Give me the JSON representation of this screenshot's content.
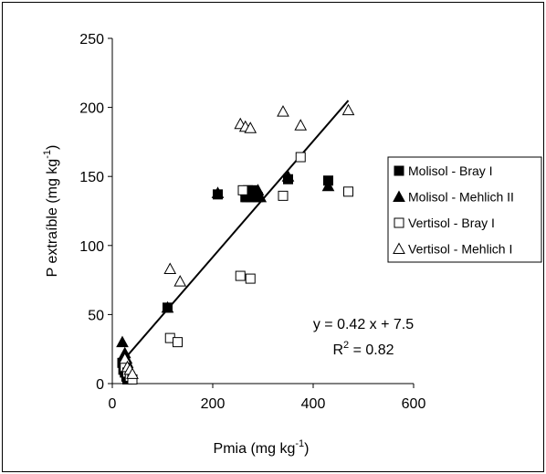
{
  "chart_data": {
    "type": "scatter",
    "xlabel": [
      "Pmia (mg kg",
      "-1",
      ")"
    ],
    "ylabel": [
      "P extraíble (mg kg",
      "-1",
      ")"
    ],
    "annotation": {
      "equation": "y = 0.42 x + 7.5",
      "r2": [
        "R",
        "2",
        " = 0.82"
      ]
    },
    "xlim": [
      0,
      600
    ],
    "xticks": [
      0,
      200,
      400,
      600
    ],
    "ylim": [
      0,
      250
    ],
    "yticks": [
      0,
      50,
      100,
      150,
      200,
      250
    ],
    "trendline": {
      "x": [
        20,
        470
      ],
      "y": [
        16,
        205
      ],
      "color": "#000000"
    },
    "series": [
      {
        "name": "Molisol - Bray I",
        "marker": "square",
        "filled": true,
        "color": "#000000",
        "x": [
          20,
          22,
          25,
          28,
          30,
          110,
          210,
          265,
          270,
          275,
          280,
          290,
          350,
          430
        ],
        "values": [
          15,
          10,
          8,
          5,
          3,
          55,
          137,
          135,
          140,
          135,
          140,
          135,
          148,
          147
        ]
      },
      {
        "name": "Molisol - Mehlich II",
        "marker": "triangle",
        "filled": true,
        "color": "#000000",
        "x": [
          20,
          25,
          28,
          30,
          32,
          110,
          210,
          270,
          280,
          290,
          295,
          350,
          430
        ],
        "values": [
          30,
          22,
          18,
          15,
          10,
          55,
          138,
          135,
          138,
          140,
          135,
          150,
          143
        ]
      },
      {
        "name": "Vertisol - Bray I",
        "marker": "square",
        "filled": false,
        "color": "#000000",
        "x": [
          25,
          30,
          35,
          40,
          115,
          130,
          255,
          275,
          260,
          340,
          375,
          470
        ],
        "values": [
          12,
          8,
          5,
          3,
          33,
          30,
          78,
          76,
          140,
          136,
          164,
          139
        ]
      },
      {
        "name": "Vertisol - Mehlich I",
        "marker": "triangle",
        "filled": false,
        "color": "#000000",
        "x": [
          25,
          30,
          35,
          40,
          115,
          135,
          255,
          265,
          275,
          340,
          375,
          470
        ],
        "values": [
          18,
          12,
          10,
          7,
          83,
          74,
          188,
          186,
          185,
          197,
          187,
          198
        ]
      }
    ]
  }
}
